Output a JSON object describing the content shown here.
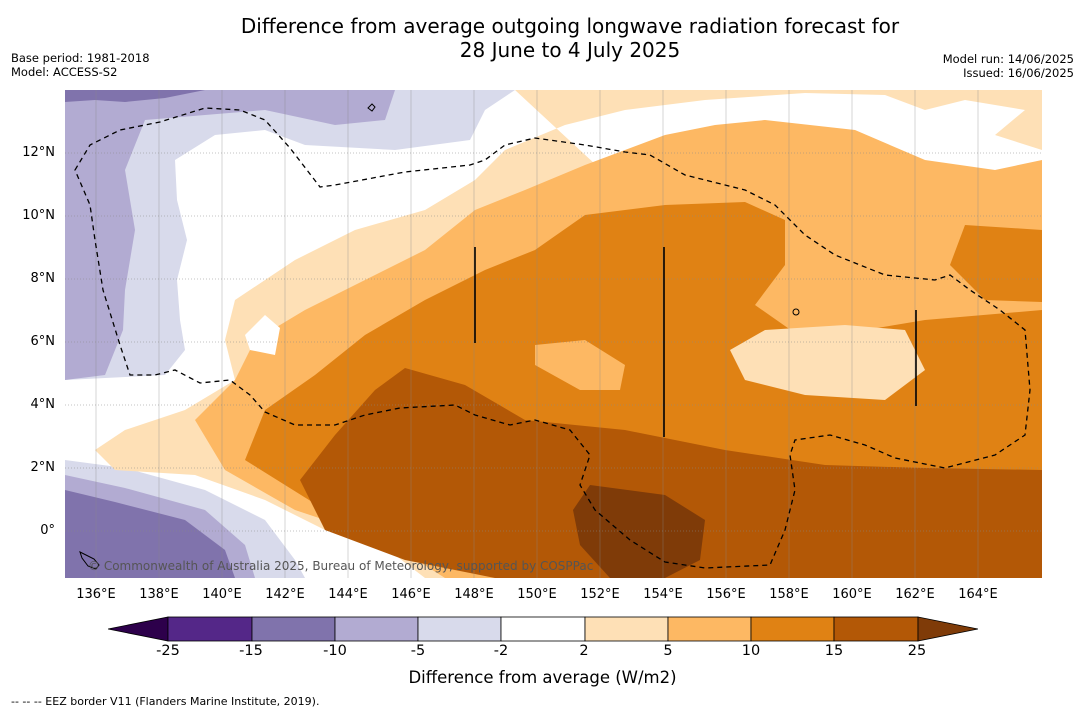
{
  "header": {
    "title_line1": "Difference from average outgoing longwave radiation forecast for",
    "title_line2": "28 June to 4 July 2025",
    "base_period": "Base period: 1981-2018",
    "model": "Model: ACCESS-S2",
    "model_run": "Model run: 14/06/2025",
    "issued": "Issued: 16/06/2025"
  },
  "map": {
    "latitude_labels": [
      "12°N",
      "10°N",
      "8°N",
      "6°N",
      "4°N",
      "2°N",
      "0°"
    ],
    "longitude_labels": [
      "136°E",
      "138°E",
      "140°E",
      "142°E",
      "144°E",
      "146°E",
      "148°E",
      "150°E",
      "152°E",
      "154°E",
      "156°E",
      "158°E",
      "160°E",
      "162°E",
      "164°E"
    ],
    "copyright": "© Commonwealth of Australia 2025, Bureau of Meteorology, supported by COSPPac"
  },
  "legend": {
    "ticks": [
      "-25",
      "-15",
      "-10",
      "-5",
      "-2",
      "2",
      "5",
      "10",
      "15",
      "25"
    ],
    "colors": [
      "#2d004b",
      "#542788",
      "#8073ac",
      "#b2abd2",
      "#d8daeb",
      "#ffffff",
      "#fee0b6",
      "#fdb863",
      "#e08214",
      "#b35806",
      "#7f3b08"
    ],
    "label": "Difference from average (W/m2)"
  },
  "footnote": "--  --  -- EEZ border V11 (Flanders Marine Institute, 2019)."
}
